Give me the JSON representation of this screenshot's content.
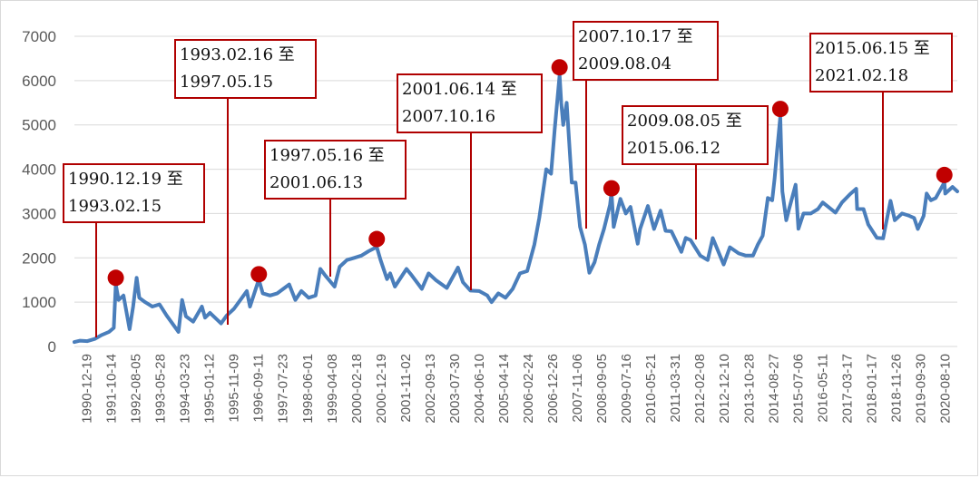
{
  "chart_data": {
    "type": "line",
    "title": "",
    "xlabel": "",
    "ylabel": "",
    "ylim": [
      0,
      7000
    ],
    "yticks": [
      "0",
      "1000",
      "2000",
      "3000",
      "4000",
      "5000",
      "6000",
      "7000"
    ],
    "x_tick_labels": [
      "1990-12-19",
      "1991-10-14",
      "1992-08-05",
      "1993-05-28",
      "1994-03-23",
      "1995-01-12",
      "1995-11-09",
      "1996-09-11",
      "1997-07-23",
      "1998-06-01",
      "1999-04-08",
      "2000-02-18",
      "2000-12-19",
      "2001-11-02",
      "2002-09-13",
      "2003-07-30",
      "2004-06-10",
      "2005-04-14",
      "2006-02-24",
      "2006-12-26",
      "2007-11-06",
      "2008-09-05",
      "2009-07-16",
      "2010-05-21",
      "2011-03-31",
      "2012-02-08",
      "2012-12-10",
      "2013-10-28",
      "2014-08-27",
      "2015-07-06",
      "2016-05-11",
      "2017-03-17",
      "2018-01-17",
      "2018-11-26",
      "2019-09-30",
      "2020-08-10"
    ],
    "grid": true,
    "legend": "none",
    "series": [
      {
        "color": "#4a7ebb",
        "points": [
          [
            "1990-12-19",
            100
          ],
          [
            "1991-03-01",
            130
          ],
          [
            "1991-06-01",
            120
          ],
          [
            "1991-09-01",
            170
          ],
          [
            "1991-12-01",
            260
          ],
          [
            "1992-03-01",
            330
          ],
          [
            "1992-05-01",
            420
          ],
          [
            "1992-05-26",
            1400
          ],
          [
            "1992-07-01",
            1050
          ],
          [
            "1992-09-01",
            1150
          ],
          [
            "1992-11-17",
            390
          ],
          [
            "1993-01-01",
            900
          ],
          [
            "1993-02-15",
            1550
          ],
          [
            "1993-03-20",
            1100
          ],
          [
            "1993-06-01",
            1000
          ],
          [
            "1993-09-01",
            900
          ],
          [
            "1993-12-01",
            950
          ],
          [
            "1994-03-01",
            700
          ],
          [
            "1994-07-29",
            330
          ],
          [
            "1994-09-13",
            1050
          ],
          [
            "1994-11-01",
            680
          ],
          [
            "1995-02-01",
            560
          ],
          [
            "1995-05-22",
            900
          ],
          [
            "1995-07-01",
            650
          ],
          [
            "1995-09-01",
            760
          ],
          [
            "1996-01-19",
            520
          ],
          [
            "1996-04-01",
            700
          ],
          [
            "1996-07-01",
            850
          ],
          [
            "1996-09-01",
            1000
          ],
          [
            "1996-12-11",
            1250
          ],
          [
            "1997-01-20",
            900
          ],
          [
            "1997-05-12",
            1510
          ],
          [
            "1997-07-01",
            1200
          ],
          [
            "1997-10-01",
            1150
          ],
          [
            "1998-01-01",
            1200
          ],
          [
            "1998-06-01",
            1400
          ],
          [
            "1998-08-18",
            1050
          ],
          [
            "1998-11-01",
            1250
          ],
          [
            "1999-02-01",
            1100
          ],
          [
            "1999-05-01",
            1150
          ],
          [
            "1999-06-30",
            1750
          ],
          [
            "1999-09-01",
            1600
          ],
          [
            "1999-12-27",
            1350
          ],
          [
            "2000-03-01",
            1800
          ],
          [
            "2000-06-01",
            1950
          ],
          [
            "2000-09-01",
            2000
          ],
          [
            "2000-12-01",
            2050
          ],
          [
            "2001-03-01",
            2150
          ],
          [
            "2001-06-14",
            2245
          ],
          [
            "2001-08-01",
            1950
          ],
          [
            "2001-10-22",
            1520
          ],
          [
            "2001-12-01",
            1650
          ],
          [
            "2002-01-29",
            1350
          ],
          [
            "2002-06-25",
            1750
          ],
          [
            "2002-09-01",
            1600
          ],
          [
            "2003-01-06",
            1300
          ],
          [
            "2003-04-01",
            1650
          ],
          [
            "2003-07-01",
            1500
          ],
          [
            "2003-11-18",
            1320
          ],
          [
            "2004-04-07",
            1780
          ],
          [
            "2004-06-10",
            1450
          ],
          [
            "2004-09-13",
            1260
          ],
          [
            "2005-01-01",
            1250
          ],
          [
            "2005-04-14",
            1150
          ],
          [
            "2005-06-06",
            1000
          ],
          [
            "2005-09-01",
            1200
          ],
          [
            "2005-12-01",
            1100
          ],
          [
            "2006-03-01",
            1300
          ],
          [
            "2006-06-01",
            1650
          ],
          [
            "2006-09-01",
            1700
          ],
          [
            "2006-12-01",
            2300
          ],
          [
            "2007-02-01",
            2900
          ],
          [
            "2007-05-01",
            4000
          ],
          [
            "2007-07-01",
            3900
          ],
          [
            "2007-08-15",
            4900
          ],
          [
            "2007-10-16",
            6124
          ],
          [
            "2007-11-06",
            5500
          ],
          [
            "2007-12-01",
            5000
          ],
          [
            "2008-01-14",
            5500
          ],
          [
            "2008-03-18",
            3700
          ],
          [
            "2008-05-06",
            3700
          ],
          [
            "2008-07-01",
            2700
          ],
          [
            "2008-09-01",
            2300
          ],
          [
            "2008-10-28",
            1665
          ],
          [
            "2009-01-01",
            1900
          ],
          [
            "2009-03-01",
            2300
          ],
          [
            "2009-05-01",
            2650
          ],
          [
            "2009-07-16",
            3200
          ],
          [
            "2009-08-04",
            3478
          ],
          [
            "2009-09-01",
            2700
          ],
          [
            "2009-11-24",
            3330
          ],
          [
            "2010-02-01",
            3000
          ],
          [
            "2010-04-01",
            3150
          ],
          [
            "2010-07-02",
            2320
          ],
          [
            "2010-08-01",
            2650
          ],
          [
            "2010-11-08",
            3170
          ],
          [
            "2011-01-25",
            2650
          ],
          [
            "2011-04-18",
            3067
          ],
          [
            "2011-06-20",
            2610
          ],
          [
            "2011-09-01",
            2600
          ],
          [
            "2012-01-06",
            2135
          ],
          [
            "2012-03-01",
            2450
          ],
          [
            "2012-05-01",
            2400
          ],
          [
            "2012-09-01",
            2050
          ],
          [
            "2012-12-04",
            1950
          ],
          [
            "2013-02-06",
            2445
          ],
          [
            "2013-06-25",
            1850
          ],
          [
            "2013-09-12",
            2240
          ],
          [
            "2014-01-01",
            2100
          ],
          [
            "2014-04-01",
            2050
          ],
          [
            "2014-07-01",
            2050
          ],
          [
            "2014-09-01",
            2300
          ],
          [
            "2014-11-01",
            2500
          ],
          [
            "2015-01-05",
            3350
          ],
          [
            "2015-03-01",
            3300
          ],
          [
            "2015-04-01",
            3800
          ],
          [
            "2015-05-01",
            4400
          ],
          [
            "2015-06-12",
            5178
          ],
          [
            "2015-07-08",
            3500
          ],
          [
            "2015-08-26",
            2850
          ],
          [
            "2015-10-01",
            3100
          ],
          [
            "2015-12-23",
            3650
          ],
          [
            "2016-01-27",
            2655
          ],
          [
            "2016-04-01",
            3000
          ],
          [
            "2016-07-01",
            3000
          ],
          [
            "2016-10-01",
            3100
          ],
          [
            "2016-12-01",
            3250
          ],
          [
            "2017-05-11",
            3022
          ],
          [
            "2017-08-01",
            3250
          ],
          [
            "2017-11-14",
            3440
          ],
          [
            "2018-01-29",
            3560
          ],
          [
            "2018-02-09",
            3100
          ],
          [
            "2018-05-01",
            3100
          ],
          [
            "2018-07-01",
            2750
          ],
          [
            "2018-10-18",
            2450
          ],
          [
            "2019-01-04",
            2440
          ],
          [
            "2019-04-08",
            3288
          ],
          [
            "2019-06-01",
            2850
          ],
          [
            "2019-09-01",
            3000
          ],
          [
            "2019-12-01",
            2950
          ],
          [
            "2020-02-01",
            2900
          ],
          [
            "2020-03-19",
            2650
          ],
          [
            "2020-06-01",
            2950
          ],
          [
            "2020-07-09",
            3450
          ],
          [
            "2020-09-01",
            3300
          ],
          [
            "2020-11-01",
            3350
          ],
          [
            "2021-02-18",
            3700
          ],
          [
            "2021-03-01",
            3450
          ],
          [
            "2021-06-01",
            3600
          ],
          [
            "2021-08-01",
            3500
          ]
        ]
      }
    ],
    "peak_markers": [
      {
        "date": "1992-05-26",
        "value": 1550
      },
      {
        "date": "1997-05-12",
        "value": 1630
      },
      {
        "date": "2001-06-14",
        "value": 2425
      },
      {
        "date": "2007-10-16",
        "value": 6300
      },
      {
        "date": "2009-08-04",
        "value": 3570
      },
      {
        "date": "2015-06-12",
        "value": 5360
      },
      {
        "date": "2021-02-18",
        "value": 3870
      }
    ],
    "annotations": [
      {
        "line1": "1990.12.19 至",
        "line2": "1993.02.15"
      },
      {
        "line1": "1993.02.16 至",
        "line2": "1997.05.15"
      },
      {
        "line1": "1997.05.16 至",
        "line2": "2001.06.13"
      },
      {
        "line1": "2001.06.14 至",
        "line2": "2007.10.16"
      },
      {
        "line1": "2007.10.17 至",
        "line2": "2009.08.04"
      },
      {
        "line1": "2009.08.05 至",
        "line2": "2015.06.12"
      },
      {
        "line1": "2015.06.15 至",
        "line2": "2021.02.18"
      }
    ]
  }
}
